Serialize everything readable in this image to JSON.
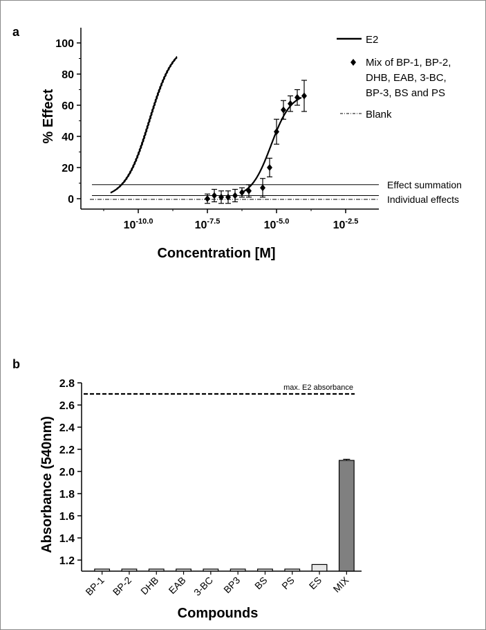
{
  "figure": {
    "panel_a_label": "a",
    "panel_b_label": "b"
  },
  "chart_data": [
    {
      "type": "line",
      "panel": "a",
      "xlabel": "Concentration [M]",
      "ylabel": "% Effect",
      "x_scale": "log",
      "xlim_exponent": [
        -12,
        -2
      ],
      "ylim": [
        -8,
        110
      ],
      "y_ticks": [
        "0",
        "20",
        "40",
        "60",
        "80",
        "100"
      ],
      "x_ticks": [
        {
          "base": "10",
          "exp": "-10.0",
          "value": -10.0
        },
        {
          "base": "10",
          "exp": "-7.5",
          "value": -7.5
        },
        {
          "base": "10",
          "exp": "-5.0",
          "value": -5.0
        },
        {
          "base": "10",
          "exp": "-2.5",
          "value": -2.5
        }
      ],
      "legend": [
        {
          "label": "E2",
          "style": "solid"
        },
        {
          "label": "Mix of BP-1, BP-2,",
          "label2": "DHB, EAB, 3-BC,",
          "label3": "BP-3,  BS and PS",
          "style": "diamond"
        },
        {
          "label": "Blank",
          "style": "dash-dot"
        }
      ],
      "series": [
        {
          "name": "E2",
          "curve": {
            "bottom": 0,
            "top": 100,
            "log_ec50": -9.6,
            "hill": 1.0
          },
          "x_range_log": [
            -11.0,
            -8.6
          ]
        },
        {
          "name": "Mix of BP-1, BP-2, DHB, EAB, 3-BC, BP-3,  BS and PS",
          "x_log": [
            -7.5,
            -7.25,
            -7.0,
            -6.75,
            -6.5,
            -6.25,
            -6.0,
            -5.5,
            -5.25,
            -5.0,
            -4.75,
            -4.5,
            -4.25,
            -4.0
          ],
          "y": [
            0,
            2,
            1,
            1,
            2,
            4,
            5,
            7,
            20,
            43,
            57,
            61,
            65,
            66
          ],
          "err": [
            3,
            4,
            4,
            4,
            4,
            3,
            4,
            6,
            6,
            8,
            6,
            5,
            5,
            10
          ],
          "curve": {
            "bottom": 0.5,
            "top": 68,
            "log_ec50": -5.2,
            "hill": 1.2
          },
          "x_range_log": [
            -6.3,
            -4.1
          ]
        },
        {
          "name": "Blank",
          "y_const": 0
        }
      ],
      "reference_lines": [
        {
          "label": "Effect summation",
          "y": 9
        },
        {
          "label": "Individual effects",
          "y": 2
        }
      ]
    },
    {
      "type": "bar",
      "panel": "b",
      "xlabel": "Compounds",
      "ylabel": "Absorbance (540nm)",
      "ylim": [
        1.1,
        2.8
      ],
      "y_ticks": [
        "1.2",
        "1.4",
        "1.6",
        "1.8",
        "2.0",
        "2.2",
        "2.4",
        "2.6",
        "2.8"
      ],
      "categories": [
        "BP-1",
        "BP-2",
        "DHB",
        "EAB",
        "3-BC",
        "BP3",
        "BS",
        "PS",
        "ES",
        "MIX"
      ],
      "values": [
        1.1,
        1.1,
        1.1,
        1.1,
        1.1,
        1.1,
        1.1,
        1.1,
        1.16,
        2.1
      ],
      "errors": [
        0,
        0,
        0,
        0,
        0,
        0,
        0,
        0,
        0,
        0.01
      ],
      "bar_colors": [
        "#d8d8d8",
        "#d8d8d8",
        "#d8d8d8",
        "#d8d8d8",
        "#d8d8d8",
        "#d8d8d8",
        "#d8d8d8",
        "#d8d8d8",
        "#e6e6e6",
        "#808080"
      ],
      "reference_lines": [
        {
          "label": "max. E2 absorbance",
          "y": 2.7,
          "style": "dashed"
        }
      ]
    }
  ]
}
